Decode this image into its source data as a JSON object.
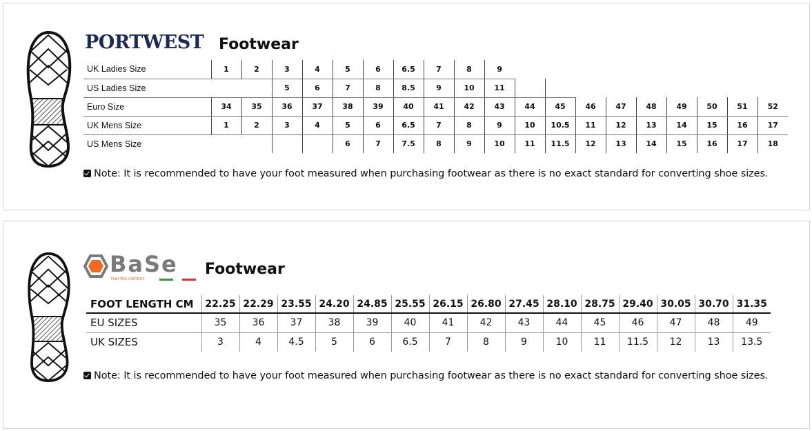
{
  "portwest": {
    "brand": "PORTWEST",
    "title": "Footwear",
    "rows": [
      {
        "label": "UK Ladies Size",
        "values": [
          "1",
          "2",
          "3",
          "4",
          "5",
          "6",
          "6.5",
          "7",
          "8",
          "9"
        ]
      },
      {
        "label": "US Ladies Size",
        "values": [
          "",
          "",
          "5",
          "6",
          "7",
          "8",
          "8.5",
          "9",
          "10",
          "11",
          "",
          ""
        ]
      },
      {
        "label": "Euro Size",
        "values": [
          "34",
          "35",
          "36",
          "37",
          "38",
          "39",
          "40",
          "41",
          "42",
          "43",
          "44",
          "45",
          "46",
          "47",
          "48",
          "49",
          "50",
          "51",
          "52"
        ]
      },
      {
        "label": "UK Mens Size",
        "values": [
          "1",
          "2",
          "3",
          "4",
          "5",
          "6",
          "6.5",
          "7",
          "8",
          "9",
          "10",
          "10.5",
          "11",
          "12",
          "13",
          "14",
          "15",
          "16",
          "17"
        ]
      },
      {
        "label": "US Mens Size",
        "values": [
          "",
          "",
          "",
          "",
          "6",
          "7",
          "7.5",
          "8",
          "9",
          "10",
          "11",
          "11.5",
          "12",
          "13",
          "14",
          "15",
          "16",
          "17",
          "18"
        ]
      }
    ],
    "note": "Note: It is recommended to have your foot measured when purchasing footwear as there is no exact standard for converting shoe sizes."
  },
  "base": {
    "brand": "BaSe",
    "tagline": "feel the comfort",
    "title": "Footwear",
    "header": {
      "label": "FOOT LENGTH CM",
      "values": [
        "22.25",
        "22.29",
        "23.55",
        "24.20",
        "24.85",
        "25.55",
        "26.15",
        "26.80",
        "27.45",
        "28.10",
        "28.75",
        "29.40",
        "30.05",
        "30.70",
        "31.35"
      ]
    },
    "rows": [
      {
        "label": "EU SIZES",
        "values": [
          "35",
          "36",
          "37",
          "38",
          "39",
          "40",
          "41",
          "42",
          "43",
          "44",
          "45",
          "46",
          "47",
          "48",
          "49"
        ]
      },
      {
        "label": "UK SIZES",
        "values": [
          "3",
          "4",
          "4.5",
          "5",
          "6",
          "6.5",
          "7",
          "8",
          "9",
          "10",
          "11",
          "11.5",
          "12",
          "13",
          "13.5"
        ]
      }
    ],
    "note": "Note: It is recommended to have your foot measured when purchasing footwear as there is no exact standard for converting shoe sizes."
  },
  "colors": {
    "portwest_navy": "#1b2a57",
    "base_orange": "#f26a21",
    "base_gray": "#7a7a7a"
  }
}
